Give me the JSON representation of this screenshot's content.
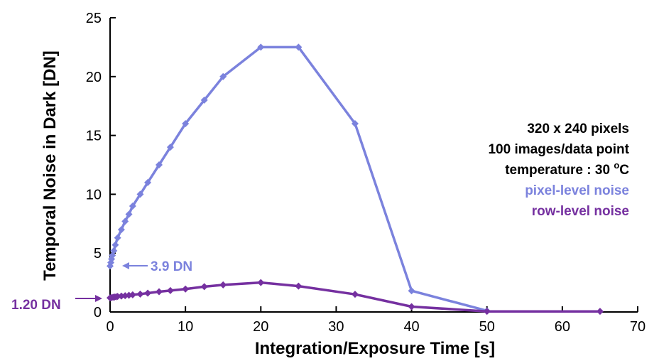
{
  "colors": {
    "pixel": "#7b82dd",
    "row": "#7530a0",
    "axis": "#000000",
    "text": "#000000"
  },
  "chart_data": {
    "type": "line",
    "xlabel": "Integration/Exposure Time [s]",
    "ylabel": "Temporal Noise in Dark [DN]",
    "xlim": [
      0,
      70
    ],
    "ylim": [
      0,
      25
    ],
    "xticks": [
      0,
      10,
      20,
      30,
      40,
      50,
      60,
      70
    ],
    "yticks": [
      0,
      5,
      10,
      15,
      20,
      25
    ],
    "grid": false,
    "series": [
      {
        "name": "pixel-level noise",
        "color": "#7b82dd",
        "x": [
          0,
          0.1,
          0.2,
          0.3,
          0.5,
          0.7,
          1,
          1.5,
          2,
          2.5,
          3,
          4,
          5,
          6.5,
          8,
          10,
          12.5,
          15,
          20,
          25,
          32.5,
          40,
          50
        ],
        "y": [
          3.9,
          4.2,
          4.5,
          4.8,
          5.2,
          5.7,
          6.3,
          7.0,
          7.7,
          8.3,
          9.0,
          10.0,
          11.0,
          12.5,
          14.0,
          16.0,
          18.0,
          20.0,
          22.5,
          22.5,
          16.0,
          1.8,
          0.1
        ]
      },
      {
        "name": "row-level noise",
        "color": "#7530a0",
        "x": [
          0,
          0.2,
          0.4,
          0.6,
          0.8,
          1,
          1.5,
          2,
          2.5,
          3,
          4,
          5,
          6.5,
          8,
          10,
          12.5,
          15,
          20,
          25,
          32.5,
          40,
          50,
          65
        ],
        "y": [
          1.2,
          1.22,
          1.25,
          1.27,
          1.29,
          1.32,
          1.35,
          1.38,
          1.42,
          1.46,
          1.52,
          1.6,
          1.72,
          1.82,
          1.95,
          2.15,
          2.3,
          2.5,
          2.2,
          1.5,
          0.45,
          0.05,
          0.05
        ]
      }
    ],
    "annotations": {
      "info_lines": [
        {
          "text": "320 x 240 pixels",
          "color": "#000000"
        },
        {
          "text": "100 images/data point",
          "color": "#000000"
        },
        {
          "text": "temperature : 30",
          "color": "#000000"
        },
        {
          "text": "pixel-level noise",
          "color": "#7b82dd"
        },
        {
          "text": "row-level noise",
          "color": "#7530a0"
        }
      ],
      "temperature_unit": "C",
      "degree_sign": "o",
      "pixel_callout": "3.9 DN",
      "row_callout": "1.20 DN"
    }
  }
}
